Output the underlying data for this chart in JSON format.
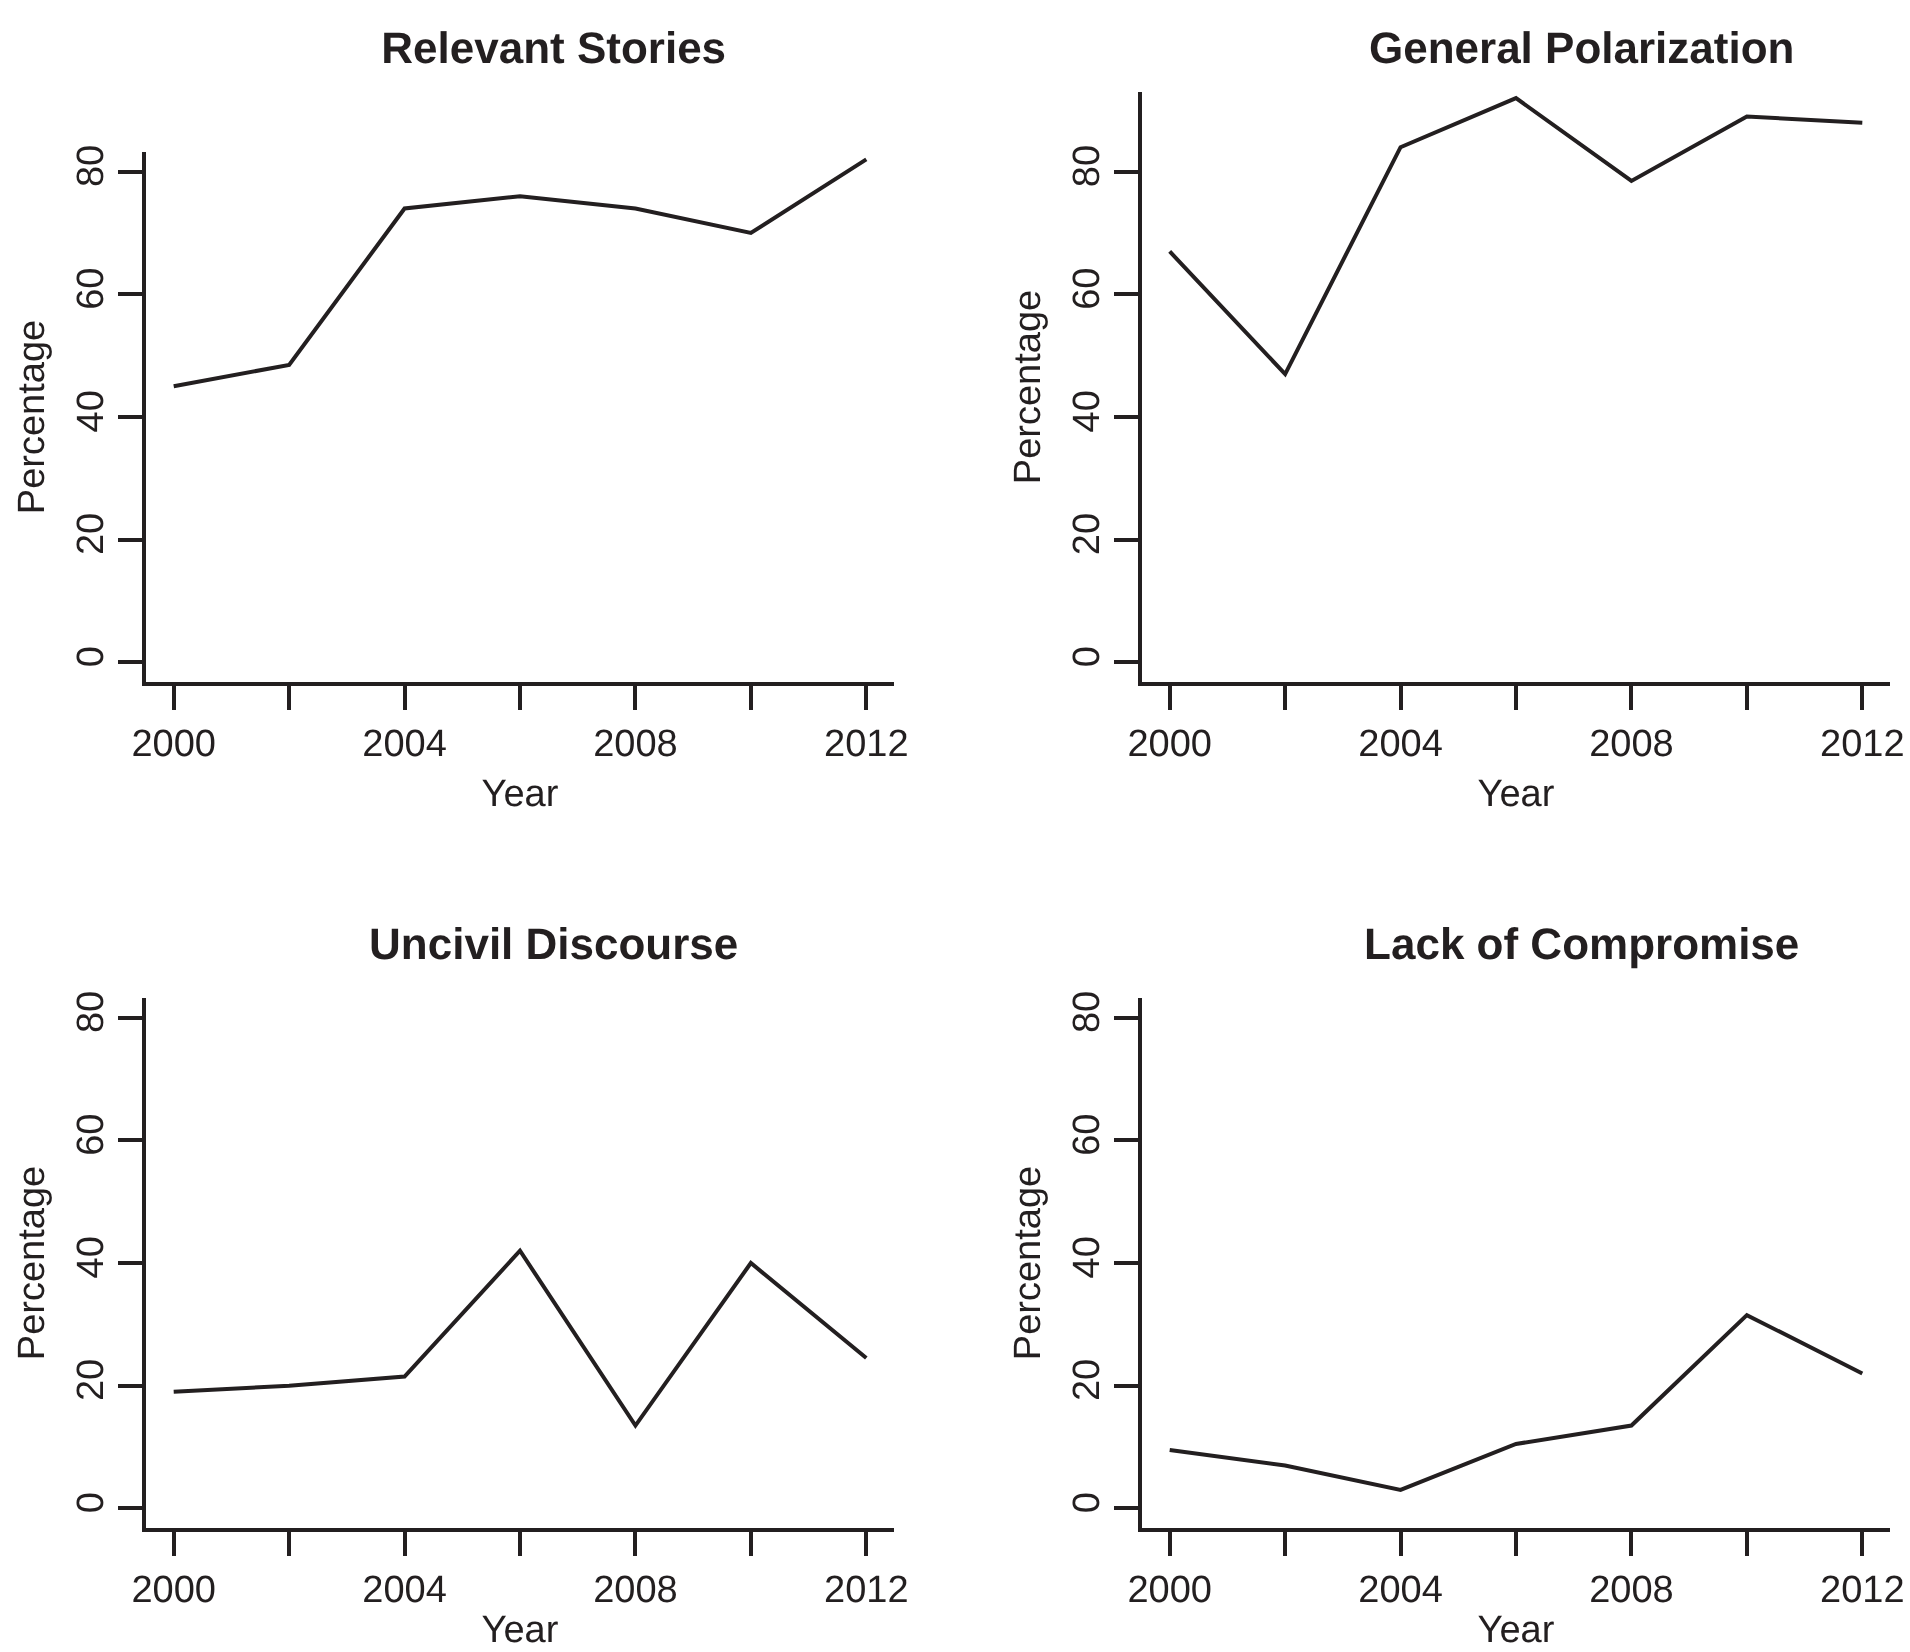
{
  "chart_data": [
    {
      "type": "line",
      "title": "Relevant Stories",
      "xlabel": "Year",
      "ylabel": "Percentage",
      "x": [
        2000,
        2002,
        2004,
        2006,
        2008,
        2010,
        2012
      ],
      "values": [
        45,
        48.5,
        74,
        76,
        74,
        70,
        82
      ],
      "color": "#231f20",
      "xlim": [
        1999.52,
        2012.48
      ],
      "ylim": [
        -3.2,
        83.2
      ],
      "xticks": [
        2000,
        {
          "value": 2002,
          "label": null
        },
        2004,
        {
          "value": 2006,
          "label": null
        },
        2008,
        {
          "value": 2010,
          "label": null
        },
        2012
      ],
      "yticks": [
        0,
        20,
        40,
        60,
        80
      ]
    },
    {
      "type": "line",
      "title": "General Polarization",
      "xlabel": "Year",
      "ylabel": "Percentage",
      "x": [
        2000,
        2002,
        2004,
        2006,
        2008,
        2010,
        2012
      ],
      "values": [
        67,
        47,
        84,
        92,
        78.5,
        89,
        88
      ],
      "color": "#231f20",
      "xlim": [
        1999.52,
        2012.48
      ],
      "ylim": [
        -3.2,
        93
      ],
      "xticks": [
        2000,
        {
          "value": 2002,
          "label": null
        },
        2004,
        {
          "value": 2006,
          "label": null
        },
        2008,
        {
          "value": 2010,
          "label": null
        },
        2012
      ],
      "yticks": [
        0,
        20,
        40,
        60,
        80
      ]
    },
    {
      "type": "line",
      "title": "Uncivil Discourse",
      "xlabel": "Year",
      "ylabel": "Percentage",
      "x": [
        2000,
        2002,
        2004,
        2006,
        2008,
        2010,
        2012
      ],
      "values": [
        19,
        20,
        21.5,
        42,
        13.5,
        40,
        24.5
      ],
      "color": "#231f20",
      "xlim": [
        1999.52,
        2012.48
      ],
      "ylim": [
        -3.2,
        83.2
      ],
      "xticks": [
        2000,
        {
          "value": 2002,
          "label": null
        },
        2004,
        {
          "value": 2006,
          "label": null
        },
        2008,
        {
          "value": 2010,
          "label": null
        },
        2012
      ],
      "yticks": [
        0,
        20,
        40,
        60,
        80
      ]
    },
    {
      "type": "line",
      "title": "Lack of Compromise",
      "xlabel": "Year",
      "ylabel": "Percentage",
      "x": [
        2000,
        2002,
        2004,
        2006,
        2008,
        2010,
        2012
      ],
      "values": [
        9.5,
        7,
        3,
        10.5,
        13.5,
        31.5,
        22
      ],
      "color": "#231f20",
      "xlim": [
        1999.52,
        2012.48
      ],
      "ylim": [
        -3.2,
        83.2
      ],
      "xticks": [
        2000,
        {
          "value": 2002,
          "label": null
        },
        2004,
        {
          "value": 2006,
          "label": null
        },
        2008,
        {
          "value": 2010,
          "label": null
        },
        2012
      ],
      "yticks": [
        0,
        20,
        40,
        60,
        80
      ]
    }
  ]
}
